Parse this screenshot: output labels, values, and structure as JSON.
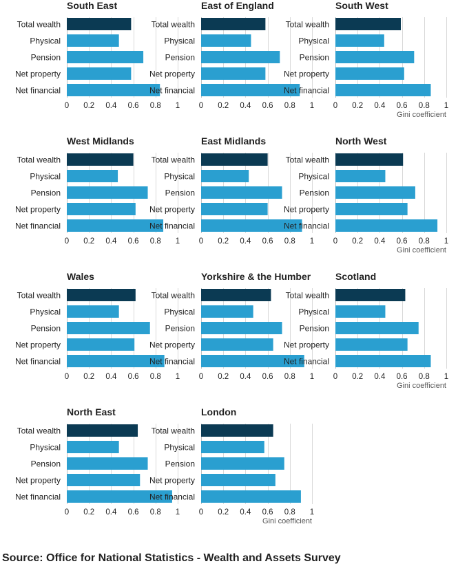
{
  "colors": {
    "total": "#0b3a53",
    "component": "#2a9fd0"
  },
  "source": "Source: Office for National Statistics - Wealth and Assets Survey",
  "chart_data": [
    {
      "type": "bar",
      "orientation": "horizontal",
      "title": "South East",
      "categories": [
        "Total wealth",
        "Physical",
        "Pension",
        "Net property",
        "Net financial"
      ],
      "values": [
        0.58,
        0.47,
        0.69,
        0.58,
        0.84
      ],
      "xlim": [
        0,
        1
      ],
      "xticks": [
        "0",
        "0.2",
        "0.4",
        "0.6",
        "0.8",
        "1"
      ],
      "xlabel": ""
    },
    {
      "type": "bar",
      "orientation": "horizontal",
      "title": "East of England",
      "categories": [
        "Total wealth",
        "Physical",
        "Pension",
        "Net property",
        "Net financial"
      ],
      "values": [
        0.58,
        0.45,
        0.71,
        0.58,
        0.89
      ],
      "xlim": [
        0,
        1
      ],
      "xticks": [
        "0",
        "0.2",
        "0.4",
        "0.6",
        "0.8",
        "1"
      ],
      "xlabel": ""
    },
    {
      "type": "bar",
      "orientation": "horizontal",
      "title": "South West",
      "categories": [
        "Total wealth",
        "Physical",
        "Pension",
        "Net property",
        "Net financial"
      ],
      "values": [
        0.59,
        0.44,
        0.71,
        0.62,
        0.86
      ],
      "xlim": [
        0,
        1
      ],
      "xticks": [
        "0",
        "0.2",
        "0.4",
        "0.6",
        "0.8",
        "1"
      ],
      "xlabel": "Gini coefficient"
    },
    {
      "type": "bar",
      "orientation": "horizontal",
      "title": "West Midlands",
      "categories": [
        "Total wealth",
        "Physical",
        "Pension",
        "Net property",
        "Net financial"
      ],
      "values": [
        0.6,
        0.46,
        0.73,
        0.62,
        0.87
      ],
      "xlim": [
        0,
        1
      ],
      "xticks": [
        "0",
        "0.2",
        "0.4",
        "0.6",
        "0.8",
        "1"
      ],
      "xlabel": ""
    },
    {
      "type": "bar",
      "orientation": "horizontal",
      "title": "East Midlands",
      "categories": [
        "Total wealth",
        "Physical",
        "Pension",
        "Net property",
        "Net financial"
      ],
      "values": [
        0.6,
        0.43,
        0.73,
        0.6,
        0.91
      ],
      "xlim": [
        0,
        1
      ],
      "xticks": [
        "0",
        "0.2",
        "0.4",
        "0.6",
        "0.8",
        "1"
      ],
      "xlabel": ""
    },
    {
      "type": "bar",
      "orientation": "horizontal",
      "title": "North West",
      "categories": [
        "Total wealth",
        "Physical",
        "Pension",
        "Net property",
        "Net financial"
      ],
      "values": [
        0.61,
        0.45,
        0.72,
        0.65,
        0.92
      ],
      "xlim": [
        0,
        1
      ],
      "xticks": [
        "0",
        "0.2",
        "0.4",
        "0.6",
        "0.8",
        "1"
      ],
      "xlabel": "Gini coefficient"
    },
    {
      "type": "bar",
      "orientation": "horizontal",
      "title": "Wales",
      "categories": [
        "Total wealth",
        "Physical",
        "Pension",
        "Net property",
        "Net financial"
      ],
      "values": [
        0.62,
        0.47,
        0.75,
        0.61,
        0.88
      ],
      "xlim": [
        0,
        1
      ],
      "xticks": [
        "0",
        "0.2",
        "0.4",
        "0.6",
        "0.8",
        "1"
      ],
      "xlabel": ""
    },
    {
      "type": "bar",
      "orientation": "horizontal",
      "title": "Yorkshire & the Humber",
      "categories": [
        "Total wealth",
        "Physical",
        "Pension",
        "Net property",
        "Net financial"
      ],
      "values": [
        0.63,
        0.47,
        0.73,
        0.65,
        0.93
      ],
      "xlim": [
        0,
        1
      ],
      "xticks": [
        "0",
        "0.2",
        "0.4",
        "0.6",
        "0.8",
        "1"
      ],
      "xlabel": ""
    },
    {
      "type": "bar",
      "orientation": "horizontal",
      "title": "Scotland",
      "categories": [
        "Total wealth",
        "Physical",
        "Pension",
        "Net property",
        "Net financial"
      ],
      "values": [
        0.63,
        0.45,
        0.75,
        0.65,
        0.86
      ],
      "xlim": [
        0,
        1
      ],
      "xticks": [
        "0",
        "0.2",
        "0.4",
        "0.6",
        "0.8",
        "1"
      ],
      "xlabel": "Gini coefficient"
    },
    {
      "type": "bar",
      "orientation": "horizontal",
      "title": "North East",
      "categories": [
        "Total wealth",
        "Physical",
        "Pension",
        "Net property",
        "Net financial"
      ],
      "values": [
        0.64,
        0.47,
        0.73,
        0.66,
        0.95
      ],
      "xlim": [
        0,
        1
      ],
      "xticks": [
        "0",
        "0.2",
        "0.4",
        "0.6",
        "0.8",
        "1"
      ],
      "xlabel": ""
    },
    {
      "type": "bar",
      "orientation": "horizontal",
      "title": "London",
      "categories": [
        "Total wealth",
        "Physical",
        "Pension",
        "Net property",
        "Net financial"
      ],
      "values": [
        0.65,
        0.57,
        0.75,
        0.67,
        0.9
      ],
      "xlim": [
        0,
        1
      ],
      "xticks": [
        "0",
        "0.2",
        "0.4",
        "0.6",
        "0.8",
        "1"
      ],
      "xlabel": "Gini coefficient"
    }
  ]
}
